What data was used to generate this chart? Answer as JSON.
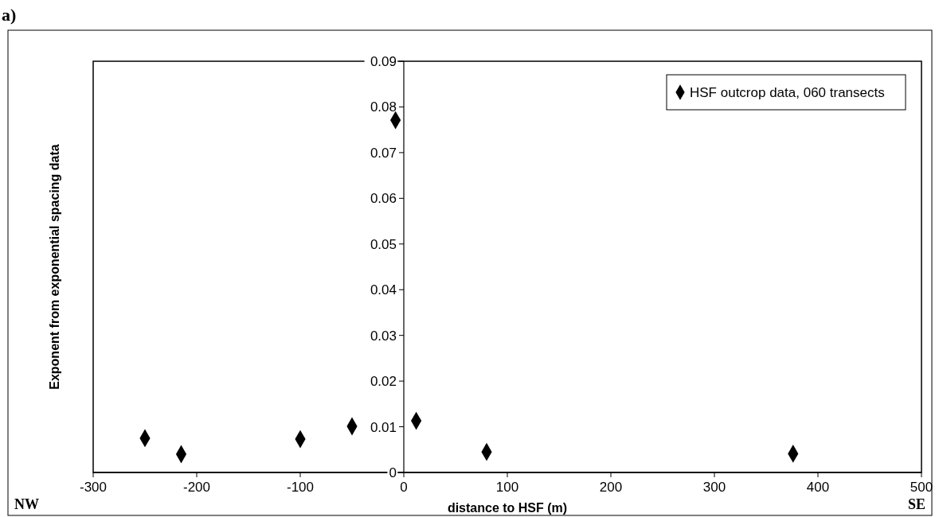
{
  "chart_data": {
    "type": "scatter",
    "title": "a)",
    "xlabel": "distance to HSF (m)",
    "ylabel": "Exponent from exponential spacing data",
    "x": [
      -250,
      -215,
      -100,
      -50,
      -8,
      12,
      80,
      376
    ],
    "series": [
      {
        "name": "HSF outcrop data, 060 transects",
        "color": "#000000",
        "values": [
          0.0075,
          0.004,
          0.0073,
          0.0101,
          0.0771,
          0.0113,
          0.0045,
          0.0041
        ]
      }
    ],
    "xlim": [
      -300,
      500
    ],
    "xticks": [
      -300,
      -200,
      -100,
      0,
      100,
      200,
      300,
      400,
      500
    ],
    "ylim": [
      0,
      0.09
    ],
    "yticks": [
      0,
      0.01,
      0.02,
      0.03,
      0.04,
      0.05,
      0.06,
      0.07,
      0.08,
      0.09
    ],
    "marker": "diamond",
    "legend": "top right",
    "grid": false,
    "annotations": [
      "NW",
      "SE"
    ]
  }
}
